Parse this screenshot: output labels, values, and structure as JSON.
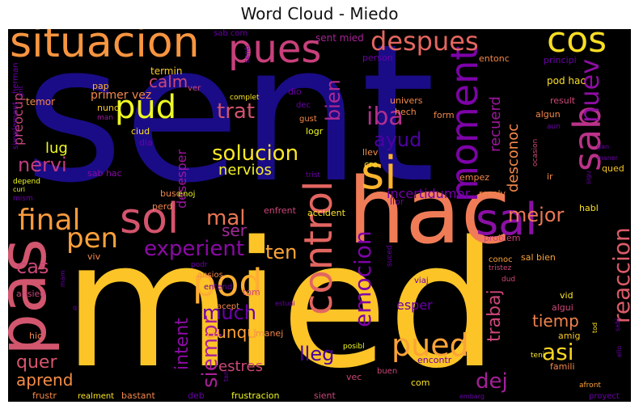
{
  "chart_data": {
    "type": "wordcloud",
    "title": "Word Cloud - Miedo",
    "background": "#000000",
    "colormap": "plasma",
    "words": [
      {
        "text": "sent",
        "weight": 100,
        "color": "#1a0c87"
      },
      {
        "text": "mied",
        "weight": 95,
        "color": "#fcc427"
      },
      {
        "text": "hac",
        "weight": 60,
        "color": "#f07c57"
      },
      {
        "text": "pas",
        "weight": 45,
        "color": "#d1566e"
      },
      {
        "text": "situacion",
        "weight": 38,
        "color": "#f89540"
      },
      {
        "text": "control",
        "weight": 36,
        "color": "#e26561"
      },
      {
        "text": "sol",
        "weight": 34,
        "color": "#d5546d"
      },
      {
        "text": "pues",
        "weight": 33,
        "color": "#c8407b"
      },
      {
        "text": "pod",
        "weight": 32,
        "color": "#fdae32"
      },
      {
        "text": "sal",
        "weight": 32,
        "color": "#8a10a4"
      },
      {
        "text": "si",
        "weight": 31,
        "color": "#fdb42e"
      },
      {
        "text": "cos",
        "weight": 30,
        "color": "#f8de24"
      },
      {
        "text": "sab",
        "weight": 29,
        "color": "#ba3388"
      },
      {
        "text": "moment",
        "weight": 28,
        "color": "#7d03a8"
      },
      {
        "text": "despues",
        "weight": 27,
        "color": "#e46660"
      },
      {
        "text": "pud",
        "weight": 26,
        "color": "#f0f921"
      },
      {
        "text": "pued",
        "weight": 25,
        "color": "#fca338"
      },
      {
        "text": "final",
        "weight": 24,
        "color": "#f89a3d"
      },
      {
        "text": "pen",
        "weight": 23,
        "color": "#ffa13a"
      },
      {
        "text": "nuev",
        "weight": 22,
        "color": "#8f0da4"
      },
      {
        "text": "iba",
        "weight": 21,
        "color": "#b32e8f"
      },
      {
        "text": "emocion",
        "weight": 21,
        "color": "#7e03a8"
      },
      {
        "text": "reaccion",
        "weight": 20,
        "color": "#db5b68"
      },
      {
        "text": "siempr",
        "weight": 20,
        "color": "#a72197"
      },
      {
        "text": "solucion",
        "weight": 20,
        "color": "#fde725"
      },
      {
        "text": "much",
        "weight": 19,
        "color": "#6a00a8"
      },
      {
        "text": "asi",
        "weight": 19,
        "color": "#fbd524"
      },
      {
        "text": "experient",
        "weight": 18,
        "color": "#8b0aa5"
      },
      {
        "text": "mal",
        "weight": 18,
        "color": "#eb7655"
      },
      {
        "text": "ayud",
        "weight": 18,
        "color": "#4c02a1"
      },
      {
        "text": "trat",
        "weight": 18,
        "color": "#d0546f"
      },
      {
        "text": "bien",
        "weight": 17,
        "color": "#b12a90"
      },
      {
        "text": "mejor",
        "weight": 17,
        "color": "#ec7853"
      },
      {
        "text": "dej",
        "weight": 17,
        "color": "#a42098"
      },
      {
        "text": "intent",
        "weight": 16,
        "color": "#8d0ba5"
      },
      {
        "text": "trabaj",
        "weight": 16,
        "color": "#cc4778"
      },
      {
        "text": "nervi",
        "weight": 16,
        "color": "#c33c80"
      },
      {
        "text": "lleg",
        "weight": 16,
        "color": "#4903a0"
      },
      {
        "text": "cas",
        "weight": 16,
        "color": "#cb4679"
      },
      {
        "text": "ten",
        "weight": 15,
        "color": "#fca636"
      },
      {
        "text": "quer",
        "weight": 15,
        "color": "#d6556d"
      },
      {
        "text": "tiemp",
        "weight": 15,
        "color": "#f1834c"
      },
      {
        "text": "calm",
        "weight": 14,
        "color": "#cc4778"
      },
      {
        "text": "lug",
        "weight": 14,
        "color": "#f0f921"
      },
      {
        "text": "ser",
        "weight": 14,
        "color": "#a22b9a"
      },
      {
        "text": "recuerd",
        "weight": 13,
        "color": "#9c179e"
      },
      {
        "text": "desconoc",
        "weight": 13,
        "color": "#f48849"
      },
      {
        "text": "aprend",
        "weight": 13,
        "color": "#f68d45"
      },
      {
        "text": "aunqu",
        "weight": 13,
        "color": "#fca338"
      },
      {
        "text": "preocup",
        "weight": 13,
        "color": "#c9477b"
      },
      {
        "text": "estres",
        "weight": 12,
        "color": "#cc4778"
      },
      {
        "text": "nervios",
        "weight": 12,
        "color": "#f3f02a"
      },
      {
        "text": "desesper",
        "weight": 12,
        "color": "#9c179e"
      },
      {
        "text": "incertidumbr",
        "weight": 12,
        "color": "#7201a8"
      },
      {
        "text": "esper",
        "weight": 11,
        "color": "#6a00a8"
      },
      {
        "text": "primer vez",
        "weight": 10,
        "color": "#f48849"
      },
      {
        "text": "sent mied",
        "weight": 8,
        "color": "#a82296"
      },
      {
        "text": "termin",
        "weight": 8,
        "color": "#f9c929"
      },
      {
        "text": "pap",
        "weight": 8,
        "color": "#fdb42f"
      },
      {
        "text": "nunc",
        "weight": 8,
        "color": "#f9c929"
      },
      {
        "text": "ciud",
        "weight": 8,
        "color": "#fce025"
      },
      {
        "text": "dia",
        "weight": 7,
        "color": "#6a00a8"
      },
      {
        "text": "man",
        "weight": 7,
        "color": "#9c179e"
      },
      {
        "text": "herman",
        "weight": 7,
        "color": "#6a00a8"
      },
      {
        "text": "grit",
        "weight": 6,
        "color": "#6a00a8"
      },
      {
        "text": "temor",
        "weight": 8,
        "color": "#f48849"
      },
      {
        "text": "simplement",
        "weight": 7,
        "color": "#6a00a8"
      },
      {
        "text": "depend",
        "weight": 7,
        "color": "#f0f921"
      },
      {
        "text": "curi",
        "weight": 6,
        "color": "#f0f921"
      },
      {
        "text": "mism",
        "weight": 7,
        "color": "#6a00a8"
      },
      {
        "text": "sab hac",
        "weight": 8,
        "color": "#8b0aa5"
      },
      {
        "text": "sab com",
        "weight": 7,
        "color": "#6a00a8"
      },
      {
        "text": "senti",
        "weight": 6,
        "color": "#6a00a8"
      },
      {
        "text": "ver",
        "weight": 7,
        "color": "#cc4778"
      },
      {
        "text": "dio",
        "weight": 8,
        "color": "#6a00a8"
      },
      {
        "text": "dec",
        "weight": 7,
        "color": "#6a00a8"
      },
      {
        "text": "complet",
        "weight": 6,
        "color": "#fde725"
      },
      {
        "text": "gust",
        "weight": 7,
        "color": "#f48849"
      },
      {
        "text": "logr",
        "weight": 8,
        "color": "#f0f921"
      },
      {
        "text": "person",
        "weight": 8,
        "color": "#6a00a8"
      },
      {
        "text": "univers",
        "weight": 8,
        "color": "#f48849"
      },
      {
        "text": "hech",
        "weight": 8,
        "color": "#f48849"
      },
      {
        "text": "llev",
        "weight": 8,
        "color": "#f68d45"
      },
      {
        "text": "cre",
        "weight": 8,
        "color": "#fce025"
      },
      {
        "text": "form",
        "weight": 8,
        "color": "#f48849"
      },
      {
        "text": "entonc",
        "weight": 8,
        "color": "#f48849"
      },
      {
        "text": "principi",
        "weight": 8,
        "color": "#6a00a8"
      },
      {
        "text": "pod hac",
        "weight": 8,
        "color": "#fce025"
      },
      {
        "text": "result",
        "weight": 8,
        "color": "#cc4778"
      },
      {
        "text": "algun",
        "weight": 8,
        "color": "#f48849"
      },
      {
        "text": "aun",
        "weight": 6,
        "color": "#6a00a8"
      },
      {
        "text": "gan",
        "weight": 6,
        "color": "#6a00a8"
      },
      {
        "text": "maner",
        "weight": 6,
        "color": "#6a00a8"
      },
      {
        "text": "ocasion",
        "weight": 6,
        "color": "#cc4778"
      },
      {
        "text": "qued",
        "weight": 8,
        "color": "#f9c929"
      },
      {
        "text": "empez",
        "weight": 8,
        "color": "#f48849"
      },
      {
        "text": "ir",
        "weight": 8,
        "color": "#f48849"
      },
      {
        "text": "sigu",
        "weight": 6,
        "color": "#6a00a8"
      },
      {
        "text": "resolv",
        "weight": 8,
        "color": "#f48849"
      },
      {
        "text": "trist",
        "weight": 6,
        "color": "#6a00a8"
      },
      {
        "text": "busc",
        "weight": 8,
        "color": "#f48849"
      },
      {
        "text": "enoj",
        "weight": 7,
        "color": "#f0f921"
      },
      {
        "text": "perd",
        "weight": 8,
        "color": "#f48849"
      },
      {
        "text": "llor",
        "weight": 8,
        "color": "#6a00a8"
      },
      {
        "text": "enfrent",
        "weight": 8,
        "color": "#cc4778"
      },
      {
        "text": "accident",
        "weight": 8,
        "color": "#fde725"
      },
      {
        "text": "habl",
        "weight": 8,
        "color": "#fce025"
      },
      {
        "text": "problem",
        "weight": 8,
        "color": "#cc4778"
      },
      {
        "text": "sal bien",
        "weight": 8,
        "color": "#fca338"
      },
      {
        "text": "conoc",
        "weight": 8,
        "color": "#fca338"
      },
      {
        "text": "tristez",
        "weight": 6,
        "color": "#cc4778"
      },
      {
        "text": "suced",
        "weight": 7,
        "color": "#6a00a8"
      },
      {
        "text": "viaj",
        "weight": 8,
        "color": "#6a00a8"
      },
      {
        "text": "dud",
        "weight": 6,
        "color": "#cc4778"
      },
      {
        "text": "vid",
        "weight": 8,
        "color": "#fde725"
      },
      {
        "text": "algui",
        "weight": 8,
        "color": "#cc4778"
      },
      {
        "text": "amig",
        "weight": 8,
        "color": "#f9c929"
      },
      {
        "text": "tod",
        "weight": 6,
        "color": "#fde725"
      },
      {
        "text": "teni",
        "weight": 6,
        "color": "#fde725"
      },
      {
        "text": "famili",
        "weight": 8,
        "color": "#f48849"
      },
      {
        "text": "sabi",
        "weight": 6,
        "color": "#6a00a8"
      },
      {
        "text": "ello",
        "weight": 6,
        "color": "#6a00a8"
      },
      {
        "text": "proyect",
        "weight": 8,
        "color": "#6a00a8"
      },
      {
        "text": "embarg",
        "weight": 6,
        "color": "#6a00a8"
      },
      {
        "text": "afront",
        "weight": 6,
        "color": "#fca338"
      },
      {
        "text": "encontr",
        "weight": 8,
        "color": "#6a00a8"
      },
      {
        "text": "com",
        "weight": 8,
        "color": "#fde725"
      },
      {
        "text": "buen",
        "weight": 8,
        "color": "#cc4778"
      },
      {
        "text": "vec",
        "weight": 8,
        "color": "#cc4778"
      },
      {
        "text": "posibl",
        "weight": 7,
        "color": "#f0f921"
      },
      {
        "text": "sient",
        "weight": 8,
        "color": "#cc4778"
      },
      {
        "text": "frustracion",
        "weight": 8,
        "color": "#f0f921"
      },
      {
        "text": "manej",
        "weight": 8,
        "color": "#f48849"
      },
      {
        "text": "estudi",
        "weight": 6,
        "color": "#6a00a8"
      },
      {
        "text": "tom",
        "weight": 8,
        "color": "#cc4778"
      },
      {
        "text": "acept",
        "weight": 8,
        "color": "#f48849"
      },
      {
        "text": "entend",
        "weight": 8,
        "color": "#6a00a8"
      },
      {
        "text": "ansios",
        "weight": 8,
        "color": "#f48849"
      },
      {
        "text": "podr",
        "weight": 7,
        "color": "#6a00a8"
      },
      {
        "text": "viv",
        "weight": 8,
        "color": "#f48849"
      },
      {
        "text": "mam",
        "weight": 7,
        "color": "#6a00a8"
      },
      {
        "text": "ansied",
        "weight": 8,
        "color": "#cc4778"
      },
      {
        "text": "q",
        "weight": 6,
        "color": "#6a00a8"
      },
      {
        "text": "hic",
        "weight": 8,
        "color": "#f48849"
      },
      {
        "text": "frustr",
        "weight": 8,
        "color": "#f48849"
      },
      {
        "text": "realment",
        "weight": 8,
        "color": "#fde725"
      },
      {
        "text": "bastant",
        "weight": 8,
        "color": "#f48849"
      },
      {
        "text": "deb",
        "weight": 8,
        "color": "#6a00a8"
      },
      {
        "text": "tan",
        "weight": 6,
        "color": "#6a00a8"
      }
    ]
  }
}
